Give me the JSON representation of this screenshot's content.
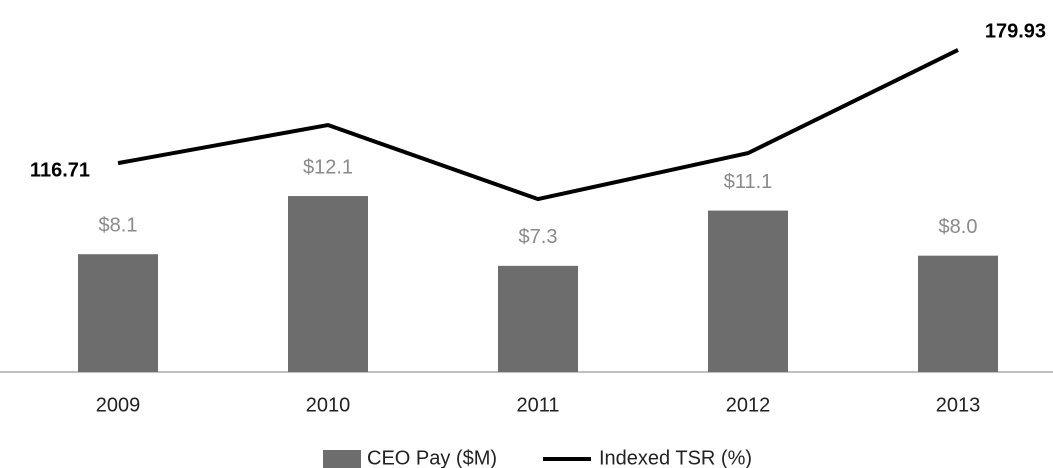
{
  "chart_data": {
    "type": "bar",
    "categories": [
      "2009",
      "2010",
      "2011",
      "2012",
      "2013"
    ],
    "series": [
      {
        "name": "CEO Pay ($M)",
        "type": "bar",
        "color": "#6d6d6d",
        "values": [
          8.1,
          12.1,
          7.3,
          11.1,
          8.0
        ],
        "value_labels": [
          "$8.1",
          "$12.1",
          "$7.3",
          "$11.1",
          "$8.0"
        ]
      },
      {
        "name": "Indexed TSR (%)",
        "type": "line",
        "axis": "y2",
        "color": "#000000",
        "values": [
          116.71,
          138.0,
          96.6,
          122.3,
          179.93
        ],
        "value_labels": [
          "116.71",
          null,
          null,
          null,
          "179.93"
        ]
      }
    ],
    "ylim": [
      0,
      24
    ],
    "y2lim": [
      0,
      195
    ],
    "legend": "bottom"
  }
}
